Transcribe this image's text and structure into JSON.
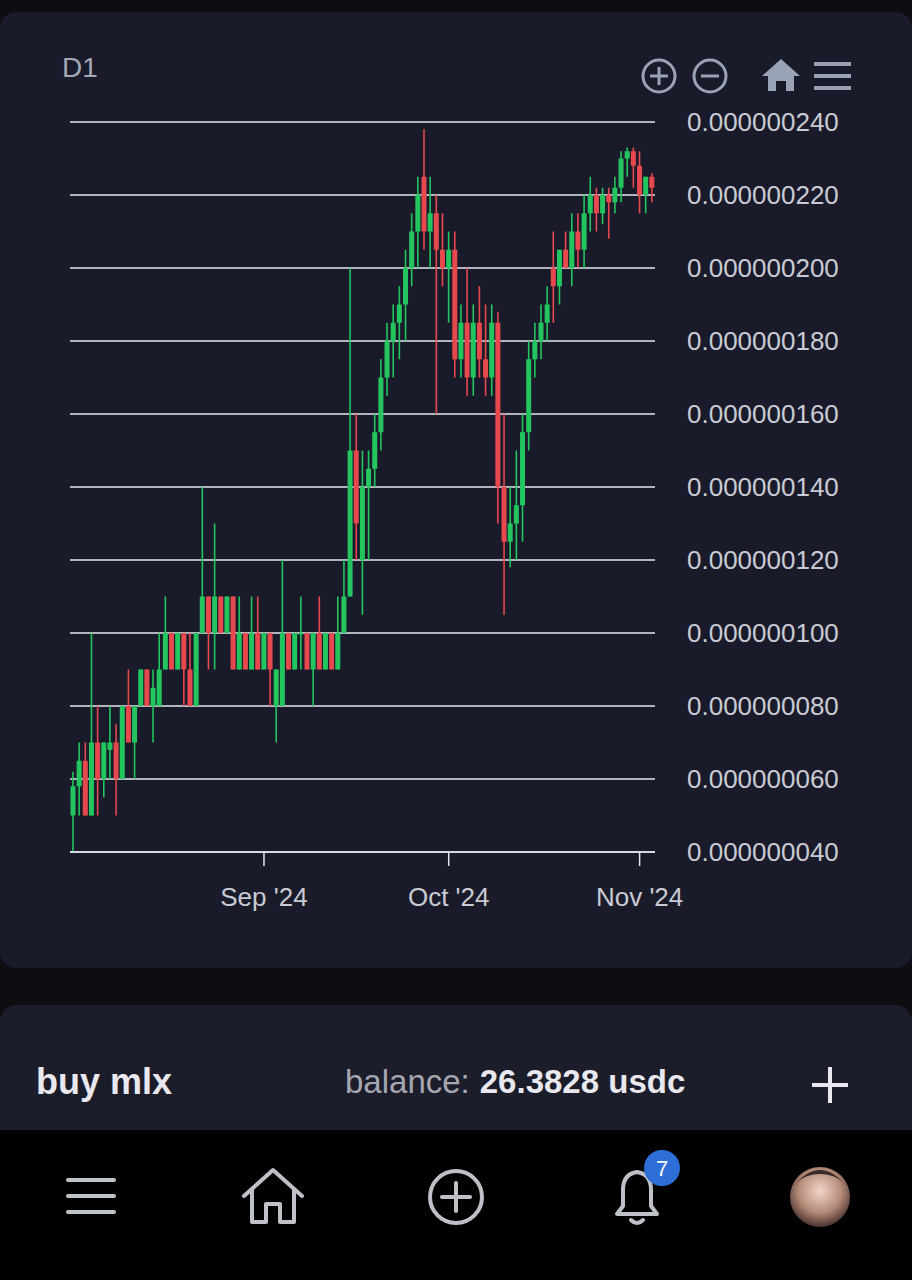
{
  "chart_data": {
    "type": "candlestick",
    "grid": true,
    "tick_labels": true,
    "color": {
      "up": "#22c55e",
      "down": "#e5484d"
    },
    "categories": [
      null,
      null,
      null,
      null,
      null,
      null,
      null,
      null,
      null,
      null,
      null,
      null,
      null,
      null,
      null,
      null,
      null,
      null,
      null,
      null,
      null,
      null,
      null,
      null,
      null,
      null,
      null,
      null,
      null,
      null,
      null,
      "Sep '24",
      null,
      null,
      null,
      null,
      null,
      null,
      null,
      null,
      null,
      null,
      null,
      null,
      null,
      null,
      null,
      null,
      null,
      null,
      null,
      null,
      null,
      null,
      null,
      null,
      null,
      null,
      null,
      null,
      null,
      "Oct '24",
      null,
      null,
      null,
      null,
      null,
      null,
      null,
      null,
      null,
      null,
      null,
      null,
      null,
      null,
      null,
      null,
      null,
      null,
      null,
      null,
      null,
      null,
      null,
      null,
      null,
      null,
      null,
      null,
      null,
      null,
      "Nov '24",
      null,
      null
    ],
    "open": [
      5e-08,
      5.8e-08,
      6.5e-08,
      5e-08,
      7e-08,
      6e-08,
      6.8e-08,
      7e-08,
      6e-08,
      8e-08,
      7e-08,
      8e-08,
      9e-08,
      8e-08,
      8e-08,
      9e-08,
      1e-07,
      9e-08,
      1e-07,
      9e-08,
      8e-08,
      1e-07,
      1.1e-07,
      1e-07,
      1.1e-07,
      1e-07,
      1.1e-07,
      9e-08,
      1e-07,
      9e-08,
      1e-07,
      9e-08,
      1e-07,
      8e-08,
      8e-08,
      1e-07,
      9e-08,
      1e-07,
      1e-07,
      9e-08,
      1e-07,
      9e-08,
      1e-07,
      9e-08,
      1e-07,
      1.1e-07,
      1.5e-07,
      1.2e-07,
      1.4e-07,
      1.45e-07,
      1.55e-07,
      1.7e-07,
      1.8e-07,
      1.85e-07,
      1.9e-07,
      2e-07,
      2.1e-07,
      2.25e-07,
      2.1e-07,
      2.15e-07,
      2.05e-07,
      2e-07,
      2.05e-07,
      1.75e-07,
      1.85e-07,
      1.7e-07,
      1.85e-07,
      1.75e-07,
      1.7e-07,
      1.85e-07,
      1.4e-07,
      1.25e-07,
      1.3e-07,
      1.35e-07,
      1.55e-07,
      1.75e-07,
      1.8e-07,
      1.85e-07,
      2e-07,
      1.95e-07,
      2.05e-07,
      2e-07,
      2.1e-07,
      2.05e-07,
      2.15e-07,
      2.2e-07,
      2.15e-07,
      2.2e-07,
      2.18e-07,
      2.22e-07,
      2.3e-07,
      2.32e-07,
      2.28e-07,
      2.2e-07,
      2.25e-07
    ],
    "high": [
      6.2e-08,
      7e-08,
      7e-08,
      1e-07,
      8e-08,
      7e-08,
      8e-08,
      7.5e-08,
      8e-08,
      9e-08,
      8e-08,
      9e-08,
      9e-08,
      9e-08,
      1e-07,
      1.1e-07,
      1e-07,
      1e-07,
      1e-07,
      1e-07,
      1e-07,
      1.4e-07,
      1.1e-07,
      1.3e-07,
      1.1e-07,
      1.1e-07,
      1.1e-07,
      1.1e-07,
      1e-07,
      1.1e-07,
      1.1e-07,
      1e-07,
      1e-07,
      9e-08,
      1.2e-07,
      1e-07,
      1e-07,
      1.1e-07,
      1e-07,
      1e-07,
      1.1e-07,
      1e-07,
      1e-07,
      1.1e-07,
      1.2e-07,
      2e-07,
      1.6e-07,
      1.5e-07,
      1.5e-07,
      1.6e-07,
      1.75e-07,
      1.85e-07,
      1.9e-07,
      1.95e-07,
      2.05e-07,
      2.15e-07,
      2.25e-07,
      2.38e-07,
      2.25e-07,
      2.2e-07,
      2.15e-07,
      2.1e-07,
      2.1e-07,
      1.9e-07,
      2e-07,
      1.9e-07,
      1.95e-07,
      1.9e-07,
      1.9e-07,
      1.88e-07,
      1.6e-07,
      1.4e-07,
      1.5e-07,
      1.6e-07,
      1.8e-07,
      1.85e-07,
      1.9e-07,
      1.95e-07,
      2.1e-07,
      2.05e-07,
      2.1e-07,
      2.15e-07,
      2.15e-07,
      2.2e-07,
      2.25e-07,
      2.22e-07,
      2.22e-07,
      2.22e-07,
      2.25e-07,
      2.32e-07,
      2.33e-07,
      2.33e-07,
      2.32e-07,
      2.25e-07,
      2.26e-07
    ],
    "low": [
      4e-08,
      5e-08,
      5e-08,
      5e-08,
      5e-08,
      5.5e-08,
      6e-08,
      5e-08,
      6e-08,
      7e-08,
      6e-08,
      8e-08,
      8e-08,
      7e-08,
      8e-08,
      9e-08,
      9e-08,
      9e-08,
      8e-08,
      8e-08,
      8e-08,
      1e-07,
      9e-08,
      9e-08,
      1e-07,
      1e-07,
      9e-08,
      9e-08,
      9e-08,
      9e-08,
      9e-08,
      9e-08,
      8e-08,
      7e-08,
      8e-08,
      9e-08,
      9e-08,
      9e-08,
      9e-08,
      8e-08,
      9e-08,
      9e-08,
      9e-08,
      9e-08,
      1e-07,
      1.1e-07,
      1.2e-07,
      1.05e-07,
      1.2e-07,
      1.4e-07,
      1.5e-07,
      1.65e-07,
      1.7e-07,
      1.75e-07,
      1.8e-07,
      1.95e-07,
      2e-07,
      2.05e-07,
      2e-07,
      1.6e-07,
      1.95e-07,
      1.85e-07,
      1.7e-07,
      1.7e-07,
      1.65e-07,
      1.65e-07,
      1.7e-07,
      1.65e-07,
      1.65e-07,
      1.3e-07,
      1.05e-07,
      1.18e-07,
      1.2e-07,
      1.25e-07,
      1.5e-07,
      1.7e-07,
      1.75e-07,
      1.8e-07,
      1.85e-07,
      1.9e-07,
      2e-07,
      1.95e-07,
      2e-07,
      2e-07,
      2.1e-07,
      2.1e-07,
      2.12e-07,
      2.08e-07,
      2.15e-07,
      2.18e-07,
      2.25e-07,
      2.22e-07,
      2.15e-07,
      2.15e-07,
      2.18e-07
    ],
    "close": [
      5.8e-08,
      6.5e-08,
      5e-08,
      7e-08,
      6e-08,
      7e-08,
      7e-08,
      6e-08,
      8e-08,
      7e-08,
      8e-08,
      9e-08,
      8e-08,
      8.5e-08,
      9e-08,
      1e-07,
      9e-08,
      1e-07,
      9e-08,
      8e-08,
      1e-07,
      1.1e-07,
      1e-07,
      1.1e-07,
      1e-07,
      1.1e-07,
      9e-08,
      1e-07,
      9e-08,
      1e-07,
      9e-08,
      1e-07,
      9e-08,
      9e-08,
      1e-07,
      9e-08,
      1e-07,
      1e-07,
      9e-08,
      1e-07,
      9e-08,
      1e-07,
      9e-08,
      1e-07,
      1.1e-07,
      1.5e-07,
      1.3e-07,
      1.4e-07,
      1.45e-07,
      1.55e-07,
      1.7e-07,
      1.8e-07,
      1.85e-07,
      1.9e-07,
      2e-07,
      2.1e-07,
      2.2e-07,
      2.1e-07,
      2.15e-07,
      2.05e-07,
      2e-07,
      2.05e-07,
      1.75e-07,
      1.85e-07,
      1.7e-07,
      1.85e-07,
      1.75e-07,
      1.7e-07,
      1.85e-07,
      1.4e-07,
      1.25e-07,
      1.3e-07,
      1.35e-07,
      1.55e-07,
      1.75e-07,
      1.8e-07,
      1.85e-07,
      1.9e-07,
      1.95e-07,
      2.05e-07,
      2e-07,
      2.1e-07,
      2.05e-07,
      2.15e-07,
      2.2e-07,
      2.15e-07,
      2.2e-07,
      2.18e-07,
      2.22e-07,
      2.3e-07,
      2.32e-07,
      2.28e-07,
      2.2e-07,
      2.25e-07,
      2.22e-07
    ],
    "ylim": [
      4e-08,
      2.4e-07
    ],
    "yticks": [
      {
        "value": 4e-08,
        "label": "0.000000040"
      },
      {
        "value": 6e-08,
        "label": "0.000000060"
      },
      {
        "value": 8e-08,
        "label": "0.000000080"
      },
      {
        "value": 1e-07,
        "label": "0.000000100"
      },
      {
        "value": 1.2e-07,
        "label": "0.000000120"
      },
      {
        "value": 1.4e-07,
        "label": "0.000000140"
      },
      {
        "value": 1.6e-07,
        "label": "0.000000160"
      },
      {
        "value": 1.8e-07,
        "label": "0.000000180"
      },
      {
        "value": 2e-07,
        "label": "0.000000200"
      },
      {
        "value": 2.2e-07,
        "label": "0.000000220"
      },
      {
        "value": 2.4e-07,
        "label": "0.000000240"
      }
    ]
  },
  "ui": {
    "timeframe": "D1",
    "order_panel": {
      "title": "buy mlx",
      "balance_label": "balance:",
      "balance_value": "26.3828 usdc"
    },
    "notifications": 7
  }
}
